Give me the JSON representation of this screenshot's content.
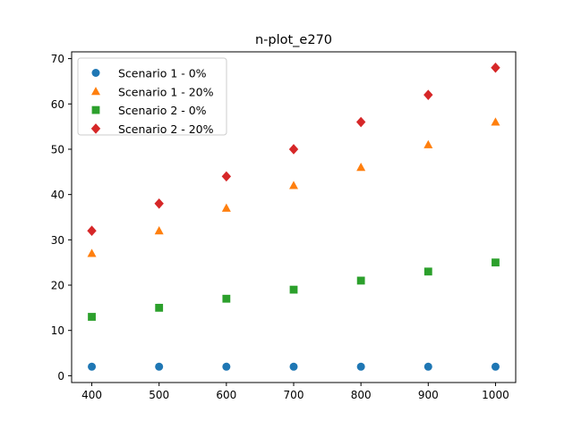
{
  "chart_data": {
    "type": "scatter",
    "title": "n-plot_e270",
    "xlabel": "",
    "ylabel": "",
    "x": [
      400,
      500,
      600,
      700,
      800,
      900,
      1000
    ],
    "xlim": [
      370,
      1030
    ],
    "ylim": [
      -1.5,
      71.5
    ],
    "xticks": [
      400,
      500,
      600,
      700,
      800,
      900,
      1000
    ],
    "yticks": [
      0,
      10,
      20,
      30,
      40,
      50,
      60,
      70
    ],
    "grid": false,
    "legend_position": "upper-left",
    "series": [
      {
        "name": "Scenario 1 - 0%",
        "marker": "circle",
        "color": "#1f77b4",
        "values": [
          2,
          2,
          2,
          2,
          2,
          2,
          2
        ]
      },
      {
        "name": "Scenario 1 - 20%",
        "marker": "triangle",
        "color": "#ff7f0e",
        "values": [
          27,
          32,
          37,
          42,
          46,
          51,
          56
        ]
      },
      {
        "name": "Scenario 2 - 0%",
        "marker": "square",
        "color": "#2ca02c",
        "values": [
          13,
          15,
          17,
          19,
          21,
          23,
          25
        ]
      },
      {
        "name": "Scenario 2 - 20%",
        "marker": "diamond",
        "color": "#d62728",
        "values": [
          32,
          38,
          44,
          50,
          56,
          62,
          68
        ]
      }
    ]
  }
}
